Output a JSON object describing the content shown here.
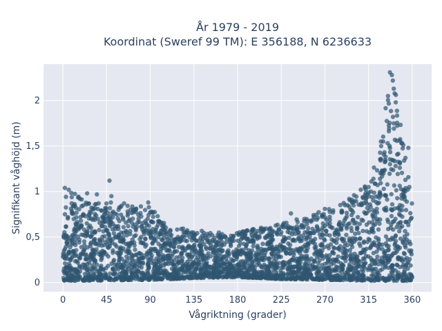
{
  "chart_data": {
    "type": "scatter",
    "title": "År 1979 - 2019",
    "subtitle": "Koordinat (Sweref 99 TM): E 356188, N 6236633",
    "xlabel": "Vågriktning (grader)",
    "ylabel": "Signifikant våghöjd (m)",
    "xlim": [
      -20,
      380
    ],
    "ylim": [
      -0.1,
      2.4
    ],
    "x_ticks": [
      0,
      45,
      90,
      135,
      180,
      225,
      270,
      315,
      360
    ],
    "x_tick_labels": [
      "0",
      "45",
      "90",
      "135",
      "180",
      "225",
      "270",
      "315",
      "360"
    ],
    "y_ticks": [
      0,
      0.5,
      1,
      1.5,
      2
    ],
    "y_tick_labels": [
      "0",
      "0,5",
      "1",
      "1,5",
      "2"
    ],
    "grid": true,
    "marker_color": "#2f5670",
    "plot_bg": "#e5e8f0",
    "upper_envelope": {
      "x": [
        0,
        5,
        15,
        30,
        45,
        60,
        75,
        90,
        100,
        110,
        120,
        135,
        150,
        165,
        180,
        200,
        225,
        250,
        270,
        285,
        300,
        315,
        325,
        330,
        335,
        340,
        345,
        350,
        355,
        360
      ],
      "y": [
        1.0,
        1.05,
        0.95,
        0.9,
        0.9,
        0.85,
        0.85,
        0.85,
        0.7,
        0.62,
        0.6,
        0.58,
        0.56,
        0.55,
        0.55,
        0.6,
        0.65,
        0.72,
        0.8,
        0.85,
        0.95,
        1.1,
        1.4,
        1.7,
        2.2,
        2.3,
        2.0,
        1.6,
        1.3,
        0.95
      ]
    },
    "lower_envelope": {
      "x": [
        0,
        90,
        135,
        180,
        225,
        270,
        315,
        360
      ],
      "y": [
        0.02,
        0.03,
        0.05,
        0.06,
        0.04,
        0.03,
        0.02,
        0.02
      ]
    },
    "outliers": [
      {
        "x": 48,
        "y": 1.12
      },
      {
        "x": 2,
        "y": 1.04
      },
      {
        "x": 6,
        "y": 1.02
      },
      {
        "x": 25,
        "y": 0.98
      },
      {
        "x": 35,
        "y": 0.97
      },
      {
        "x": 50,
        "y": 0.95
      },
      {
        "x": 63,
        "y": 0.87
      },
      {
        "x": 88,
        "y": 0.88
      },
      {
        "x": 235,
        "y": 0.76
      },
      {
        "x": 270,
        "y": 0.81
      },
      {
        "x": 295,
        "y": 0.92
      },
      {
        "x": 300,
        "y": 0.96
      },
      {
        "x": 307,
        "y": 1.02
      },
      {
        "x": 315,
        "y": 1.05
      },
      {
        "x": 320,
        "y": 1.14
      },
      {
        "x": 328,
        "y": 1.5
      },
      {
        "x": 330,
        "y": 1.55
      },
      {
        "x": 337,
        "y": 2.31
      },
      {
        "x": 339,
        "y": 2.28
      },
      {
        "x": 340,
        "y": 2.22
      },
      {
        "x": 341,
        "y": 2.13
      },
      {
        "x": 335,
        "y": 2.05
      },
      {
        "x": 343,
        "y": 1.98
      },
      {
        "x": 353,
        "y": 1.37
      },
      {
        "x": 356,
        "y": 1.48
      },
      {
        "x": 357,
        "y": 1.05
      }
    ]
  }
}
